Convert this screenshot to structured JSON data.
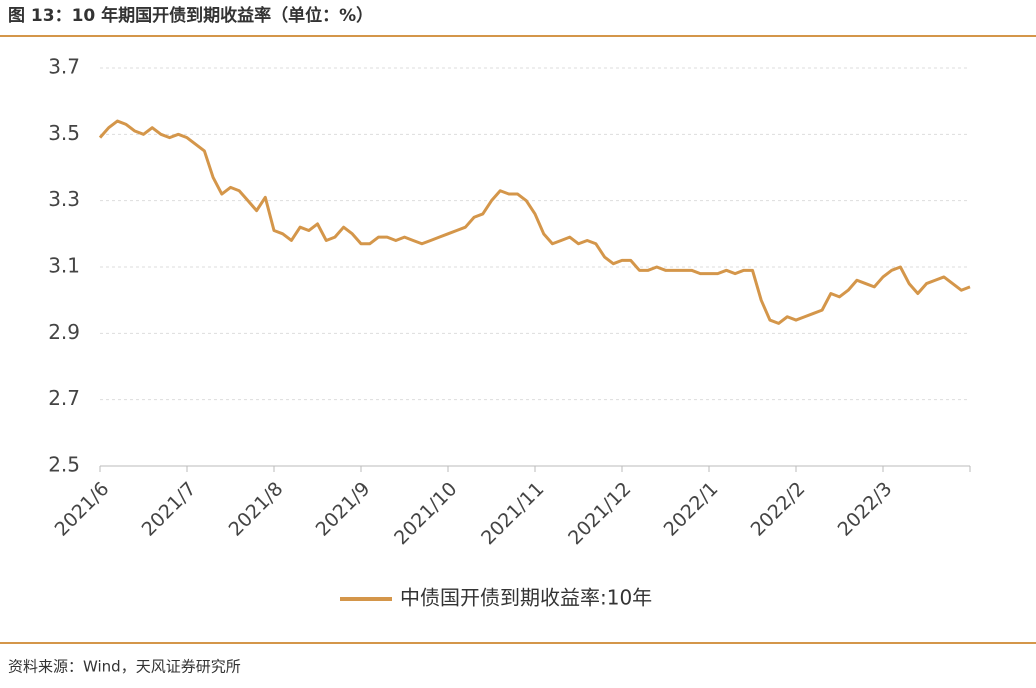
{
  "title": "图 13：10 年期国开债到期收益率（单位：%）",
  "source": "资料来源：Wind，天风证券研究所",
  "chart_data": {
    "type": "line",
    "categories": [
      "2021/6",
      null,
      null,
      null,
      null,
      null,
      null,
      null,
      null,
      null,
      "2021/7",
      null,
      null,
      null,
      null,
      null,
      null,
      null,
      null,
      null,
      "2021/8",
      null,
      null,
      null,
      null,
      null,
      null,
      null,
      null,
      null,
      "2021/9",
      null,
      null,
      null,
      null,
      null,
      null,
      null,
      null,
      null,
      "2021/10",
      null,
      null,
      null,
      null,
      null,
      null,
      null,
      null,
      null,
      "2021/11",
      null,
      null,
      null,
      null,
      null,
      null,
      null,
      null,
      null,
      "2021/12",
      null,
      null,
      null,
      null,
      null,
      null,
      null,
      null,
      null,
      "2022/1",
      null,
      null,
      null,
      null,
      null,
      null,
      null,
      null,
      null,
      "2022/2",
      null,
      null,
      null,
      null,
      null,
      null,
      null,
      null,
      null,
      "2022/3",
      null,
      null,
      null,
      null,
      null,
      null,
      null,
      null,
      null,
      null
    ],
    "series": [
      {
        "name": "中债国开债到期收益率:10年",
        "color": "#d4964a",
        "values": [
          3.49,
          3.52,
          3.54,
          3.53,
          3.51,
          3.5,
          3.52,
          3.5,
          3.49,
          3.5,
          3.49,
          3.47,
          3.45,
          3.37,
          3.32,
          3.34,
          3.33,
          3.3,
          3.27,
          3.31,
          3.21,
          3.2,
          3.18,
          3.22,
          3.21,
          3.23,
          3.18,
          3.19,
          3.22,
          3.2,
          3.17,
          3.17,
          3.19,
          3.19,
          3.18,
          3.19,
          3.18,
          3.17,
          3.18,
          3.19,
          3.2,
          3.21,
          3.22,
          3.25,
          3.26,
          3.3,
          3.33,
          3.32,
          3.32,
          3.3,
          3.26,
          3.2,
          3.17,
          3.18,
          3.19,
          3.17,
          3.18,
          3.17,
          3.13,
          3.11,
          3.12,
          3.12,
          3.09,
          3.09,
          3.1,
          3.09,
          3.09,
          3.09,
          3.09,
          3.08,
          3.08,
          3.08,
          3.09,
          3.08,
          3.09,
          3.09,
          3.0,
          2.94,
          2.93,
          2.95,
          2.94,
          2.95,
          2.96,
          2.97,
          3.02,
          3.01,
          3.03,
          3.06,
          3.05,
          3.04,
          3.07,
          3.09,
          3.1,
          3.05,
          3.02,
          3.05,
          3.06,
          3.07,
          3.05,
          3.03,
          3.04
        ]
      }
    ],
    "ylim": [
      2.5,
      3.7
    ],
    "yticks": [
      2.5,
      2.7,
      2.9,
      3.1,
      3.3,
      3.5,
      3.7
    ],
    "grid": true
  }
}
